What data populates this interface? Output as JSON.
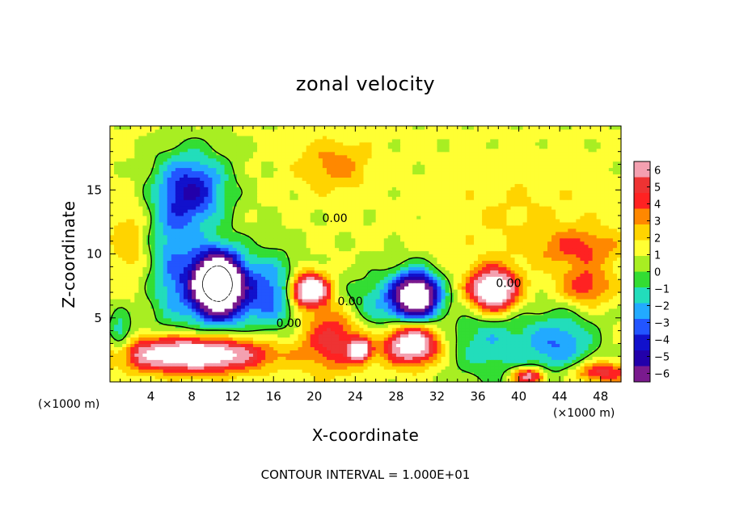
{
  "chart_data": {
    "type": "heatmap",
    "title": "zonal velocity",
    "xlabel": "X-coordinate",
    "ylabel": "Z-coordinate",
    "x_unit": "(×1000 m)",
    "y_unit": "(×1000 m)",
    "xlim": [
      0,
      50
    ],
    "ylim": [
      0,
      20
    ],
    "x_ticks": [
      "4",
      "8",
      "12",
      "16",
      "20",
      "24",
      "28",
      "32",
      "36",
      "40",
      "44",
      "48"
    ],
    "x_tick_values": [
      4,
      8,
      12,
      16,
      20,
      24,
      28,
      32,
      36,
      40,
      44,
      48
    ],
    "y_ticks": [
      "5",
      "10",
      "15"
    ],
    "y_tick_values": [
      5,
      10,
      15
    ],
    "colorbar": {
      "min": -6,
      "max": 6,
      "ticks": [
        "6",
        "5",
        "4",
        "3",
        "2",
        "1",
        "0",
        "−1",
        "−2",
        "−3",
        "−4",
        "−5",
        "−6"
      ],
      "colors": [
        "#f4a0b0",
        "#ee3333",
        "#ff2222",
        "#ff8800",
        "#ffd400",
        "#ffff33",
        "#a8ee22",
        "#33dd33",
        "#22ddbb",
        "#22aaff",
        "#2255ff",
        "#1111cc",
        "#2200aa",
        "#7a1a8e"
      ]
    },
    "background_value": 1,
    "features": [
      {
        "type": "jet",
        "x": 2,
        "z": 11,
        "sx": 2.0,
        "sz": 3.5,
        "value": 1.5
      },
      {
        "type": "jet",
        "x": 8,
        "z": 15,
        "sx": 3.5,
        "sz": 3.0,
        "value": -5.0
      },
      {
        "type": "jet",
        "x": 11,
        "z": 7,
        "sx": 3.5,
        "sz": 3.0,
        "value": -4.0
      },
      {
        "type": "jet",
        "x": 16,
        "z": 7,
        "sx": 2.5,
        "sz": 3.0,
        "value": -3.5
      },
      {
        "type": "jet",
        "x": 6,
        "z": 9,
        "sx": 2.5,
        "sz": 5.0,
        "value": -3.0
      },
      {
        "type": "jet",
        "x": 10.5,
        "z": 7.8,
        "sx": 2.3,
        "sz": 2.3,
        "value": -11.0
      },
      {
        "type": "jet",
        "x": 8,
        "z": 2.2,
        "sx": 7.0,
        "sz": 1.3,
        "value": 8.5
      },
      {
        "type": "jet",
        "x": 19.5,
        "z": 7.2,
        "sx": 1.8,
        "sz": 1.2,
        "value": 9.0
      },
      {
        "type": "jet",
        "x": 22,
        "z": 3.5,
        "sx": 3.0,
        "sz": 2.5,
        "value": 4.0
      },
      {
        "type": "jet",
        "x": 24.5,
        "z": 2.5,
        "sx": 1.0,
        "sz": 0.8,
        "value": 7.0
      },
      {
        "type": "jet",
        "x": 29.5,
        "z": 3.0,
        "sx": 2.5,
        "sz": 1.5,
        "value": 8.0
      },
      {
        "type": "jet",
        "x": 30,
        "z": 6.8,
        "sx": 2.2,
        "sz": 1.8,
        "value": -10.0
      },
      {
        "type": "jet",
        "x": 26,
        "z": 6.0,
        "sx": 4.0,
        "sz": 2.5,
        "value": -2.5
      },
      {
        "type": "jet",
        "x": 37.5,
        "z": 7.2,
        "sx": 2.2,
        "sz": 1.6,
        "value": 9.0
      },
      {
        "type": "jet",
        "x": 37,
        "z": 3.0,
        "sx": 4.0,
        "sz": 3.0,
        "value": -2.5
      },
      {
        "type": "jet",
        "x": 44,
        "z": 3.0,
        "sx": 3.5,
        "sz": 2.5,
        "value": -3.5
      },
      {
        "type": "jet",
        "x": 46,
        "z": 10.5,
        "sx": 4.0,
        "sz": 1.5,
        "value": 2.5
      },
      {
        "type": "jet",
        "x": 46.5,
        "z": 7.5,
        "sx": 2.5,
        "sz": 1.5,
        "value": 3.0
      },
      {
        "type": "jet",
        "x": 22,
        "z": 17,
        "sx": 3.5,
        "sz": 2.0,
        "value": 2.0
      },
      {
        "type": "jet",
        "x": 40,
        "z": 13,
        "sx": 8.0,
        "sz": 4.0,
        "value": 0.8
      },
      {
        "type": "jet",
        "x": 48,
        "z": 0.8,
        "sx": 3.0,
        "sz": 0.8,
        "value": 4.0
      },
      {
        "type": "jet",
        "x": 41,
        "z": 0.5,
        "sx": 1.5,
        "sz": 0.6,
        "value": 6.0
      },
      {
        "type": "jet",
        "x": 1,
        "z": 3.5,
        "sx": 1.2,
        "sz": 2.0,
        "value": -3.0
      }
    ],
    "contour_labels": [
      {
        "text": "0.00",
        "x": 22.0,
        "z": 12.5
      },
      {
        "text": "0.00",
        "x": 23.5,
        "z": 6.0
      },
      {
        "text": "0.00",
        "x": 17.5,
        "z": 4.3
      },
      {
        "text": "0.00",
        "x": 39.0,
        "z": 7.4
      }
    ],
    "contour_interval_text": "CONTOUR INTERVAL = 1.000E+01"
  }
}
